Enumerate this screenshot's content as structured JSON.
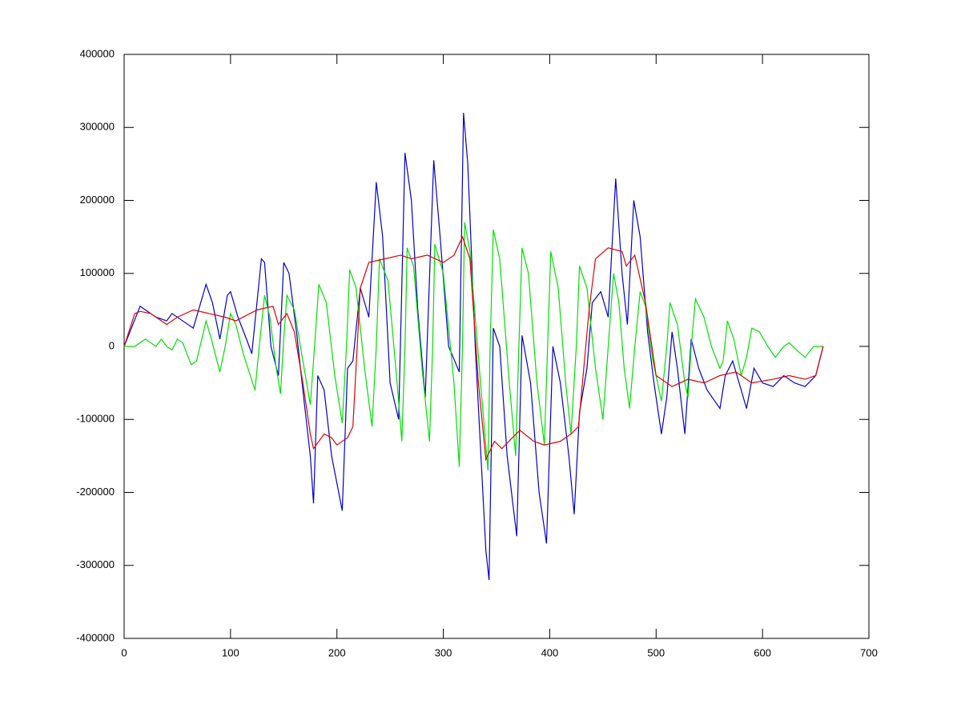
{
  "chart_data": {
    "type": "line",
    "xlim": [
      0,
      700
    ],
    "xticks": [
      0,
      100,
      200,
      300,
      400,
      500,
      600,
      700
    ],
    "ylim": [
      -400000,
      400000
    ],
    "yticks": [
      -400000,
      -300000,
      -200000,
      -100000,
      0,
      100000,
      200000,
      300000,
      400000
    ],
    "series": [
      {
        "color": "#0000cc",
        "x": [
          0,
          15,
          20,
          30,
          40,
          45,
          55,
          65,
          70,
          77,
          83,
          90,
          97,
          100,
          107,
          115,
          120,
          129,
          132,
          138,
          145,
          150,
          155,
          162,
          168,
          175,
          178,
          182,
          188,
          195,
          205,
          210,
          215,
          222,
          230,
          237,
          243,
          250,
          258,
          264,
          270,
          276,
          283,
          291,
          297,
          305,
          315,
          319,
          323,
          330,
          340,
          343,
          347,
          353,
          360,
          369,
          374,
          382,
          390,
          397,
          403,
          410,
          418,
          423,
          428,
          435,
          440,
          448,
          455,
          462,
          468,
          473,
          479,
          485,
          492,
          498,
          505,
          510,
          515,
          520,
          527,
          533,
          540,
          548,
          560,
          565,
          572,
          585,
          592,
          600,
          610,
          620,
          630,
          640,
          650,
          657
        ],
        "values": [
          0,
          55000,
          50000,
          40000,
          35000,
          45000,
          35000,
          25000,
          50000,
          85000,
          60000,
          10000,
          70000,
          75000,
          40000,
          10000,
          -10000,
          120000,
          115000,
          0,
          -40000,
          115000,
          100000,
          20000,
          -60000,
          -150000,
          -215000,
          -40000,
          -60000,
          -150000,
          -225000,
          -30000,
          -20000,
          80000,
          40000,
          225000,
          150000,
          -50000,
          -100000,
          265000,
          200000,
          50000,
          -70000,
          255000,
          150000,
          0,
          -35000,
          320000,
          250000,
          0,
          -280000,
          -320000,
          25000,
          0,
          -150000,
          -260000,
          15000,
          -50000,
          -200000,
          -270000,
          0,
          -50000,
          -150000,
          -230000,
          -90000,
          -30000,
          60000,
          75000,
          40000,
          230000,
          100000,
          30000,
          200000,
          150000,
          20000,
          -50000,
          -120000,
          -70000,
          20000,
          -30000,
          -120000,
          10000,
          -30000,
          -60000,
          -85000,
          -40000,
          -20000,
          -85000,
          -30000,
          -50000,
          -55000,
          -40000,
          -50000,
          -55000,
          -40000,
          0
        ]
      },
      {
        "color": "#00e000",
        "x": [
          0,
          10,
          20,
          25,
          30,
          35,
          40,
          45,
          50,
          55,
          63,
          68,
          73,
          77,
          82,
          90,
          95,
          100,
          105,
          112,
          123,
          127,
          132,
          137,
          143,
          147,
          150,
          153,
          160,
          168,
          175,
          179,
          183,
          190,
          198,
          205,
          209,
          212,
          218,
          226,
          233,
          237,
          240,
          248,
          256,
          261,
          264,
          266,
          272,
          280,
          287,
          290,
          292,
          300,
          310,
          315,
          318,
          320,
          325,
          335,
          342,
          344,
          347,
          353,
          362,
          368,
          371,
          374,
          380,
          388,
          395,
          398,
          401,
          408,
          415,
          420,
          425,
          428,
          435,
          443,
          450,
          455,
          460,
          465,
          470,
          475,
          480,
          485,
          490,
          497,
          505,
          510,
          513,
          520,
          527,
          530,
          533,
          537,
          545,
          552,
          560,
          563,
          567,
          573,
          580,
          585,
          590,
          597,
          605,
          612,
          620,
          625,
          632,
          640,
          648,
          657
        ],
        "values": [
          0,
          0,
          10000,
          5000,
          0,
          10000,
          0,
          -5000,
          10000,
          5000,
          -25000,
          -20000,
          10000,
          35000,
          10000,
          -35000,
          0,
          45000,
          30000,
          -10000,
          -60000,
          0,
          70000,
          40000,
          -30000,
          -65000,
          10000,
          70000,
          50000,
          -20000,
          -80000,
          0,
          85000,
          60000,
          -40000,
          -105000,
          0,
          105000,
          80000,
          -30000,
          -110000,
          0,
          120000,
          90000,
          -40000,
          -130000,
          0,
          135000,
          110000,
          -30000,
          -130000,
          0,
          140000,
          100000,
          -50000,
          -165000,
          0,
          170000,
          130000,
          -50000,
          -170000,
          0,
          160000,
          120000,
          -50000,
          -150000,
          0,
          135000,
          100000,
          -50000,
          -135000,
          0,
          130000,
          80000,
          -50000,
          -120000,
          0,
          110000,
          80000,
          -30000,
          -100000,
          0,
          100000,
          60000,
          -30000,
          -85000,
          0,
          75000,
          55000,
          -20000,
          -75000,
          0,
          60000,
          30000,
          -50000,
          -70000,
          0,
          65000,
          40000,
          0,
          -30000,
          -20000,
          35000,
          10000,
          -40000,
          -15000,
          25000,
          20000,
          0,
          -15000,
          0,
          5000,
          -5000,
          -15000,
          0,
          0
        ]
      },
      {
        "color": "#e00000",
        "x": [
          0,
          10,
          15,
          25,
          40,
          50,
          65,
          80,
          95,
          105,
          125,
          140,
          145,
          153,
          160,
          168,
          175,
          178,
          188,
          195,
          200,
          210,
          215,
          222,
          230,
          245,
          260,
          270,
          285,
          300,
          310,
          318,
          325,
          333,
          340,
          348,
          355,
          365,
          372,
          385,
          395,
          410,
          420,
          427,
          437,
          443,
          455,
          468,
          472,
          480,
          490,
          500,
          515,
          530,
          545,
          560,
          575,
          590,
          610,
          625,
          640,
          650,
          657
        ],
        "values": [
          0,
          45000,
          48000,
          45000,
          30000,
          40000,
          50000,
          45000,
          40000,
          35000,
          50000,
          55000,
          30000,
          45000,
          20000,
          -50000,
          -120000,
          -140000,
          -120000,
          -125000,
          -135000,
          -125000,
          -110000,
          80000,
          115000,
          120000,
          125000,
          120000,
          125000,
          115000,
          125000,
          150000,
          120000,
          -50000,
          -155000,
          -130000,
          -140000,
          -125000,
          -115000,
          -130000,
          -135000,
          -130000,
          -120000,
          -110000,
          50000,
          120000,
          135000,
          130000,
          110000,
          125000,
          60000,
          -40000,
          -55000,
          -45000,
          -50000,
          -40000,
          -35000,
          -50000,
          -45000,
          -40000,
          -45000,
          -40000,
          0
        ]
      }
    ]
  }
}
